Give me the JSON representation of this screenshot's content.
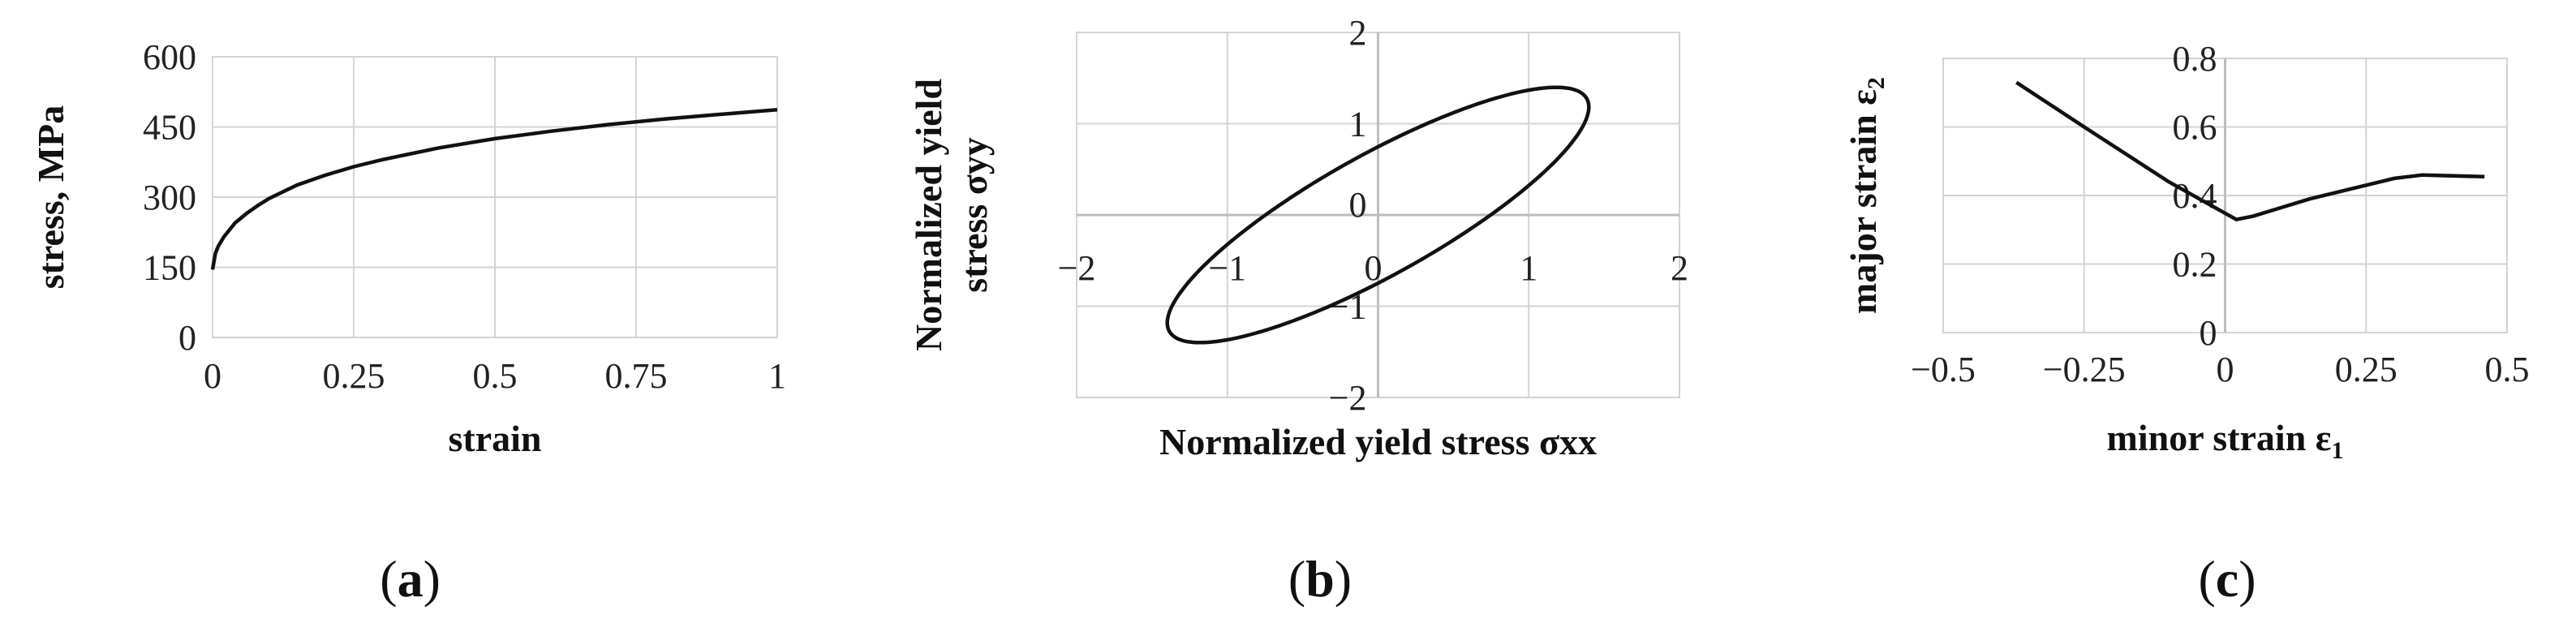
{
  "chart_data": [
    {
      "type": "line",
      "panel": "(a)",
      "panel_letter": "a",
      "xlabel": "strain",
      "ylabel": "stress, MPa",
      "xlim": [
        0,
        1
      ],
      "ylim": [
        0,
        600
      ],
      "xticks": [
        "0",
        "0.25",
        "0.5",
        "0.75",
        "1"
      ],
      "yticks": [
        "0",
        "150",
        "300",
        "450",
        "600"
      ],
      "grid": true,
      "series": [
        {
          "x": [
            0,
            0.005,
            0.01,
            0.02,
            0.04,
            0.06,
            0.08,
            0.1,
            0.15,
            0.2,
            0.25,
            0.3,
            0.4,
            0.5,
            0.6,
            0.7,
            0.8,
            0.9,
            1.0
          ],
          "y": [
            145,
            180,
            195,
            215,
            245,
            265,
            282,
            297,
            326,
            347,
            365,
            380,
            405,
            425,
            441,
            455,
            467,
            477,
            487
          ]
        }
      ]
    },
    {
      "type": "line",
      "panel": "(b)",
      "panel_letter": "b",
      "xlabel": "Normalized yield stress σxx",
      "ylabel_lines": [
        "Normalized yield",
        "stress σyy"
      ],
      "xlim": [
        -2,
        2
      ],
      "ylim": [
        -2,
        2
      ],
      "xticks": [
        "−2",
        "−1",
        "0",
        "1",
        "2"
      ],
      "yticks": [
        "−2",
        "−1",
        "0",
        "1",
        "2"
      ],
      "grid": true,
      "ellipse": {
        "center": [
          0,
          0
        ],
        "semi_major": 1.9,
        "semi_minor": 0.55,
        "angle_deg": 45
      }
    },
    {
      "type": "line",
      "panel": "(c)",
      "panel_letter": "c",
      "xlabel": "minor strain ε",
      "xlabel_sub": "1",
      "ylabel": "major strain ε",
      "ylabel_sub": "2",
      "xlim": [
        -0.5,
        0.5
      ],
      "ylim": [
        0,
        0.8
      ],
      "xticks": [
        "−0.5",
        "−0.25",
        "0",
        "0.25",
        "0.5"
      ],
      "yticks": [
        "0",
        "0.2",
        "0.4",
        "0.6",
        "0.8"
      ],
      "grid": true,
      "series": [
        {
          "x": [
            -0.37,
            -0.25,
            -0.1,
            0.02,
            0.05,
            0.15,
            0.3,
            0.35,
            0.46
          ],
          "y": [
            0.73,
            0.6,
            0.44,
            0.33,
            0.34,
            0.39,
            0.45,
            0.46,
            0.455
          ]
        }
      ]
    }
  ]
}
